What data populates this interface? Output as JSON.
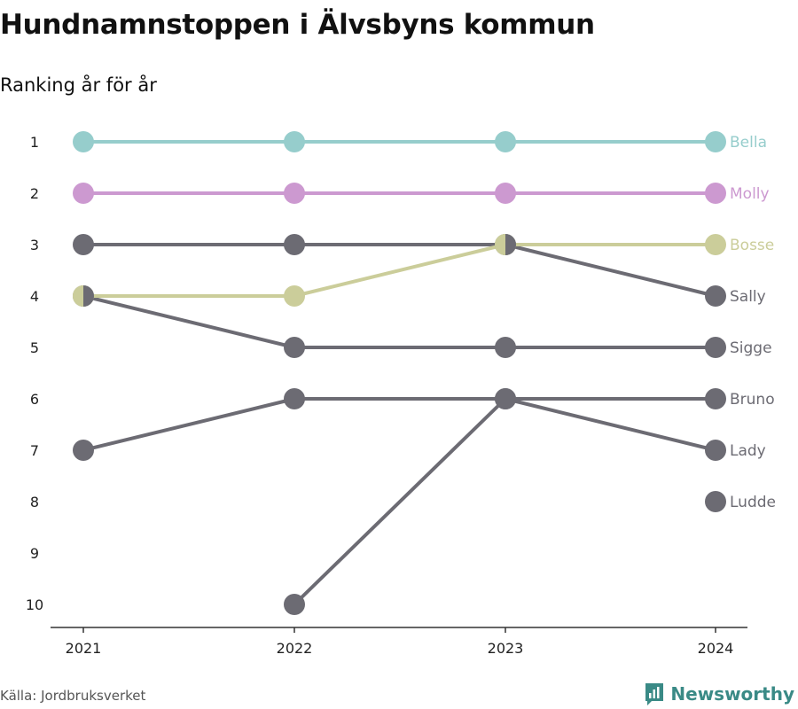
{
  "title": "Hundnamnstoppen i Älvsbyns kommun",
  "subtitle": "Ranking år för år",
  "source": "Källa: Jordbruksverket",
  "brand": "Newsworthy",
  "colors": {
    "teal": "#96cdcc",
    "pink": "#cc99d0",
    "olive": "#cbcd9a",
    "gray": "#6c6b73",
    "brand": "#3a8a86"
  },
  "chart_data": {
    "type": "line",
    "subtype": "bump",
    "x": [
      "2021",
      "2022",
      "2023",
      "2024"
    ],
    "y_ticks": [
      1,
      2,
      3,
      4,
      5,
      6,
      7,
      8,
      9,
      10
    ],
    "ylim": [
      1,
      10
    ],
    "y_inverted": true,
    "grid": false,
    "legend": "end-labels",
    "series": [
      {
        "name": "Bella",
        "color": "teal",
        "values": [
          1,
          1,
          1,
          1
        ]
      },
      {
        "name": "Molly",
        "color": "pink",
        "values": [
          2,
          2,
          2,
          2
        ]
      },
      {
        "name": "Bosse",
        "color": "olive",
        "values": [
          4,
          4,
          3,
          3
        ]
      },
      {
        "name": "Sally",
        "color": "gray",
        "values": [
          3,
          3,
          3,
          4
        ]
      },
      {
        "name": "Sigge",
        "color": "gray",
        "values": [
          4,
          5,
          5,
          5
        ]
      },
      {
        "name": "Bruno",
        "color": "gray",
        "values": [
          null,
          10,
          6,
          6
        ]
      },
      {
        "name": "Lady",
        "color": "gray",
        "values": [
          7,
          6,
          6,
          7
        ]
      },
      {
        "name": "Ludde",
        "color": "gray",
        "values": [
          null,
          null,
          null,
          8
        ]
      }
    ]
  }
}
